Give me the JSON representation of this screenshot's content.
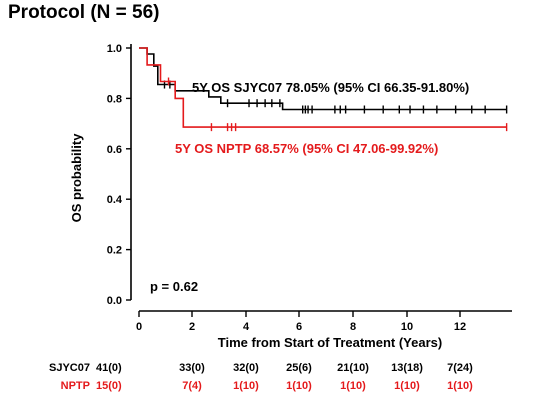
{
  "title": "Protocol  (N = 56)",
  "chart_data": {
    "type": "line",
    "xlabel": "Time from Start of Treatment (Years)",
    "ylabel": "OS probability",
    "xlim": [
      0,
      13.9
    ],
    "ylim": [
      0,
      1.0
    ],
    "x_ticks": [
      "0",
      "2",
      "4",
      "6",
      "8",
      "10",
      "12"
    ],
    "y_ticks": [
      "0.0",
      "0.2",
      "0.4",
      "0.6",
      "0.8",
      "1.0"
    ],
    "p_value_label": "p = 0.62",
    "series": [
      {
        "name": "SJYC07",
        "color": "#000000",
        "annotation": "5Y OS SJYC07 78.05%  (95% CI 66.35-91.80%)",
        "steps": [
          [
            0,
            1.0
          ],
          [
            0.3,
            1.0
          ],
          [
            0.3,
            0.976
          ],
          [
            0.55,
            0.976
          ],
          [
            0.55,
            0.928
          ],
          [
            0.7,
            0.928
          ],
          [
            0.7,
            0.855
          ],
          [
            1.35,
            0.855
          ],
          [
            1.35,
            0.83
          ],
          [
            2.6,
            0.83
          ],
          [
            2.6,
            0.806
          ],
          [
            3.05,
            0.806
          ],
          [
            3.05,
            0.781
          ],
          [
            5.35,
            0.781
          ],
          [
            5.35,
            0.756
          ],
          [
            13.7,
            0.756
          ]
        ],
        "censors": [
          [
            0.95,
            0.855
          ],
          [
            1.15,
            0.855
          ],
          [
            3.3,
            0.781
          ],
          [
            4.1,
            0.781
          ],
          [
            4.4,
            0.781
          ],
          [
            4.7,
            0.781
          ],
          [
            4.95,
            0.781
          ],
          [
            5.25,
            0.781
          ],
          [
            6.1,
            0.756
          ],
          [
            6.2,
            0.756
          ],
          [
            6.3,
            0.756
          ],
          [
            6.45,
            0.756
          ],
          [
            7.3,
            0.756
          ],
          [
            7.5,
            0.756
          ],
          [
            7.7,
            0.756
          ],
          [
            8.4,
            0.756
          ],
          [
            9.1,
            0.756
          ],
          [
            9.7,
            0.756
          ],
          [
            10.1,
            0.756
          ],
          [
            10.6,
            0.756
          ],
          [
            11.1,
            0.756
          ],
          [
            11.8,
            0.756
          ],
          [
            12.4,
            0.756
          ],
          [
            12.9,
            0.756
          ],
          [
            13.7,
            0.756
          ]
        ]
      },
      {
        "name": "NPTP",
        "color": "#e41a1c",
        "annotation": "5Y OS NPTP 68.57%  (95% CI 47.06-99.92%)",
        "steps": [
          [
            0,
            1.0
          ],
          [
            0.3,
            1.0
          ],
          [
            0.3,
            0.933
          ],
          [
            0.8,
            0.933
          ],
          [
            0.8,
            0.867
          ],
          [
            1.35,
            0.867
          ],
          [
            1.35,
            0.8
          ],
          [
            1.65,
            0.8
          ],
          [
            1.65,
            0.686
          ],
          [
            13.7,
            0.686
          ]
        ],
        "censors": [
          [
            1.1,
            0.867
          ],
          [
            2.7,
            0.686
          ],
          [
            3.3,
            0.686
          ],
          [
            3.45,
            0.686
          ],
          [
            3.6,
            0.686
          ],
          [
            13.7,
            0.686
          ]
        ]
      }
    ],
    "risk_table": {
      "rows": [
        {
          "label": "SJYC07",
          "color": "#000000",
          "values": [
            "41(0)",
            "33(0)",
            "32(0)",
            "25(6)",
            "21(10)",
            "13(18)",
            "7(24)"
          ]
        },
        {
          "label": "NPTP",
          "color": "#e41a1c",
          "values": [
            "15(0)",
            "7(4)",
            "1(10)",
            "1(10)",
            "1(10)",
            "1(10)",
            "1(10)"
          ]
        }
      ]
    }
  }
}
